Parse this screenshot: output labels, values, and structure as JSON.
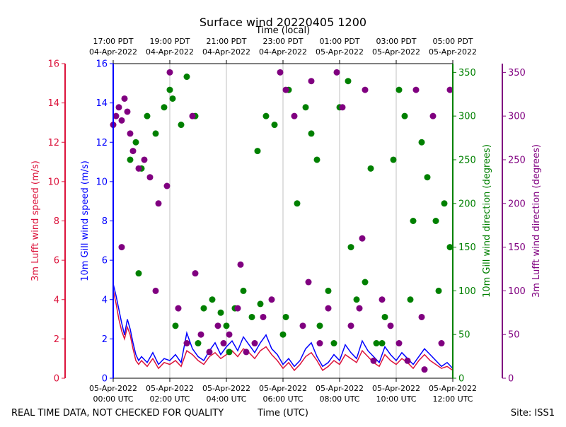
{
  "chart_data": {
    "type": "line+scatter",
    "title": "Surface wind 20220405 1200",
    "top_axis_label": "Time (local)",
    "bottom_axis_label": "Time (UTC)",
    "footer_left": "REAL TIME DATA, NOT CHECKED FOR QUALITY",
    "footer_right": "Site: ISS1",
    "x_range_utc_hours": [
      0,
      12
    ],
    "top_ticks": [
      {
        "x": 0,
        "line1": "17:00 PDT",
        "line2": "04-Apr-2022"
      },
      {
        "x": 2,
        "line1": "19:00 PDT",
        "line2": "04-Apr-2022"
      },
      {
        "x": 4,
        "line1": "21:00 PDT",
        "line2": "04-Apr-2022"
      },
      {
        "x": 6,
        "line1": "23:00 PDT",
        "line2": "04-Apr-2022"
      },
      {
        "x": 8,
        "line1": "01:00 PDT",
        "line2": "05-Apr-2022"
      },
      {
        "x": 10,
        "line1": "03:00 PDT",
        "line2": "05-Apr-2022"
      },
      {
        "x": 12,
        "line1": "05:00 PDT",
        "line2": "05-Apr-2022"
      }
    ],
    "bottom_ticks": [
      {
        "x": 0,
        "line1": "05-Apr-2022",
        "line2": "00:00 UTC"
      },
      {
        "x": 2,
        "line1": "05-Apr-2022",
        "line2": "02:00 UTC"
      },
      {
        "x": 4,
        "line1": "05-Apr-2022",
        "line2": "04:00 UTC"
      },
      {
        "x": 6,
        "line1": "05-Apr-2022",
        "line2": "06:00 UTC"
      },
      {
        "x": 8,
        "line1": "05-Apr-2022",
        "line2": "08:00 UTC"
      },
      {
        "x": 10,
        "line1": "05-Apr-2022",
        "line2": "10:00 UTC"
      },
      {
        "x": 12,
        "line1": "05-Apr-2022",
        "line2": "12:00 UTC"
      }
    ],
    "axes": {
      "lufft_speed": {
        "label": "3m Lufft wind speed (m/s)",
        "range": [
          0,
          16
        ],
        "ticks": [
          0,
          2,
          4,
          6,
          8,
          10,
          12,
          14,
          16
        ],
        "color": "#dc143c"
      },
      "gill_speed": {
        "label": "10m Gill wind speed (m/s)",
        "range": [
          0,
          16
        ],
        "ticks": [
          0,
          2,
          4,
          6,
          8,
          10,
          12,
          14,
          16
        ],
        "color": "#0000ff"
      },
      "gill_dir": {
        "label": "10m Gill wind direction (degrees)",
        "range": [
          0,
          360
        ],
        "ticks": [
          0,
          50,
          100,
          150,
          200,
          250,
          300,
          350
        ],
        "color": "#008000"
      },
      "lufft_dir": {
        "label": "3m Lufft wind direction (degrees)",
        "range": [
          0,
          360
        ],
        "ticks": [
          0,
          50,
          100,
          150,
          200,
          250,
          300,
          350
        ],
        "color": "#800080"
      }
    },
    "series": [
      {
        "name": "10m Gill wind speed",
        "kind": "line",
        "axis": "gill_speed",
        "color": "#0000ff",
        "x": [
          0.0,
          0.1,
          0.2,
          0.3,
          0.4,
          0.5,
          0.6,
          0.7,
          0.8,
          0.9,
          1.0,
          1.2,
          1.4,
          1.6,
          1.8,
          2.0,
          2.2,
          2.4,
          2.6,
          2.8,
          3.0,
          3.2,
          3.4,
          3.6,
          3.8,
          4.0,
          4.2,
          4.4,
          4.6,
          4.8,
          5.0,
          5.2,
          5.4,
          5.6,
          5.8,
          6.0,
          6.2,
          6.4,
          6.6,
          6.8,
          7.0,
          7.2,
          7.4,
          7.6,
          7.8,
          8.0,
          8.2,
          8.4,
          8.6,
          8.8,
          9.0,
          9.2,
          9.4,
          9.6,
          9.8,
          10.0,
          10.2,
          10.4,
          10.6,
          10.8,
          11.0,
          11.2,
          11.4,
          11.6,
          11.8,
          12.0
        ],
        "y": [
          4.8,
          4.2,
          3.5,
          2.8,
          2.2,
          3.0,
          2.5,
          1.8,
          1.2,
          0.9,
          1.1,
          0.8,
          1.3,
          0.7,
          1.0,
          0.9,
          1.2,
          0.8,
          2.3,
          1.5,
          1.1,
          0.9,
          1.4,
          1.8,
          1.2,
          1.6,
          1.9,
          1.4,
          2.1,
          1.7,
          1.3,
          1.8,
          2.2,
          1.5,
          1.2,
          0.7,
          1.0,
          0.6,
          0.9,
          1.5,
          1.8,
          1.1,
          0.6,
          0.8,
          1.2,
          0.9,
          1.7,
          1.3,
          1.0,
          1.9,
          1.4,
          1.1,
          0.8,
          1.6,
          1.2,
          0.9,
          1.3,
          1.0,
          0.7,
          1.1,
          1.5,
          1.2,
          0.9,
          0.6,
          0.8,
          0.5
        ]
      },
      {
        "name": "3m Lufft wind speed",
        "kind": "line",
        "axis": "lufft_speed",
        "color": "#dc143c",
        "x": [
          0.0,
          0.1,
          0.2,
          0.3,
          0.4,
          0.5,
          0.6,
          0.7,
          0.8,
          0.9,
          1.0,
          1.2,
          1.4,
          1.6,
          1.8,
          2.0,
          2.2,
          2.4,
          2.6,
          2.8,
          3.0,
          3.2,
          3.4,
          3.6,
          3.8,
          4.0,
          4.2,
          4.4,
          4.6,
          4.8,
          5.0,
          5.2,
          5.4,
          5.6,
          5.8,
          6.0,
          6.2,
          6.4,
          6.6,
          6.8,
          7.0,
          7.2,
          7.4,
          7.6,
          7.8,
          8.0,
          8.2,
          8.4,
          8.6,
          8.8,
          9.0,
          9.2,
          9.4,
          9.6,
          9.8,
          10.0,
          10.2,
          10.4,
          10.6,
          10.8,
          11.0,
          11.2,
          11.4,
          11.6,
          11.8,
          12.0
        ],
        "y": [
          4.5,
          3.8,
          3.0,
          2.4,
          2.0,
          2.6,
          2.2,
          1.5,
          0.9,
          0.7,
          0.9,
          0.6,
          1.0,
          0.5,
          0.8,
          0.7,
          0.9,
          0.6,
          1.4,
          1.2,
          0.9,
          0.7,
          1.1,
          1.3,
          1.0,
          1.2,
          1.4,
          1.1,
          1.5,
          1.3,
          1.0,
          1.4,
          1.6,
          1.2,
          0.9,
          0.5,
          0.8,
          0.4,
          0.7,
          1.1,
          1.3,
          0.9,
          0.4,
          0.6,
          0.9,
          0.7,
          1.2,
          1.0,
          0.8,
          1.4,
          1.1,
          0.8,
          0.6,
          1.2,
          0.9,
          0.7,
          1.0,
          0.8,
          0.5,
          0.9,
          1.2,
          0.9,
          0.7,
          0.5,
          0.6,
          0.4
        ]
      },
      {
        "name": "10m Gill wind direction",
        "kind": "scatter",
        "axis": "gill_dir",
        "color": "#008000",
        "x": [
          0.6,
          0.8,
          1.0,
          1.2,
          1.5,
          1.8,
          2.0,
          2.1,
          2.4,
          2.6,
          2.9,
          3.2,
          3.5,
          3.8,
          4.0,
          4.3,
          4.6,
          4.9,
          5.1,
          5.4,
          5.7,
          6.0,
          6.2,
          6.5,
          6.8,
          7.0,
          7.3,
          7.6,
          7.8,
          8.0,
          8.3,
          8.6,
          8.9,
          9.1,
          9.3,
          9.6,
          9.9,
          10.1,
          10.3,
          10.6,
          10.9,
          11.1,
          11.4,
          11.7,
          11.9,
          0.9,
          2.2,
          3.0,
          4.1,
          5.2,
          6.1,
          7.2,
          8.4,
          9.5,
          10.5,
          11.5
        ],
        "y": [
          250,
          270,
          240,
          300,
          280,
          310,
          330,
          320,
          290,
          345,
          300,
          80,
          90,
          75,
          60,
          80,
          100,
          70,
          260,
          300,
          290,
          50,
          330,
          200,
          310,
          280,
          60,
          100,
          40,
          310,
          340,
          90,
          110,
          240,
          40,
          70,
          250,
          330,
          300,
          180,
          270,
          230,
          180,
          200,
          150,
          120,
          60,
          40,
          30,
          85,
          70,
          250,
          150,
          40,
          90,
          100
        ]
      },
      {
        "name": "3m Lufft wind direction",
        "kind": "scatter",
        "axis": "lufft_dir",
        "color": "#800080",
        "x": [
          0.0,
          0.1,
          0.2,
          0.3,
          0.4,
          0.5,
          0.6,
          0.7,
          0.9,
          1.1,
          1.3,
          1.6,
          1.9,
          2.0,
          2.3,
          2.6,
          2.8,
          3.1,
          3.4,
          3.7,
          3.9,
          4.1,
          4.4,
          4.7,
          5.0,
          5.3,
          5.6,
          5.9,
          6.1,
          6.4,
          6.7,
          7.0,
          7.3,
          7.6,
          7.9,
          8.1,
          8.4,
          8.7,
          8.9,
          9.2,
          9.5,
          9.8,
          10.1,
          10.4,
          10.7,
          11.0,
          11.3,
          11.6,
          11.9,
          0.3,
          1.5,
          2.9,
          4.5,
          6.9,
          8.8,
          10.9
        ],
        "y": [
          290,
          300,
          310,
          295,
          320,
          305,
          280,
          260,
          240,
          250,
          230,
          200,
          220,
          350,
          80,
          40,
          300,
          50,
          30,
          60,
          40,
          50,
          80,
          30,
          40,
          70,
          90,
          350,
          330,
          300,
          60,
          340,
          40,
          80,
          350,
          310,
          60,
          80,
          330,
          20,
          90,
          60,
          40,
          20,
          330,
          10,
          300,
          40,
          330,
          150,
          100,
          120,
          130,
          110,
          160,
          70
        ]
      }
    ]
  }
}
